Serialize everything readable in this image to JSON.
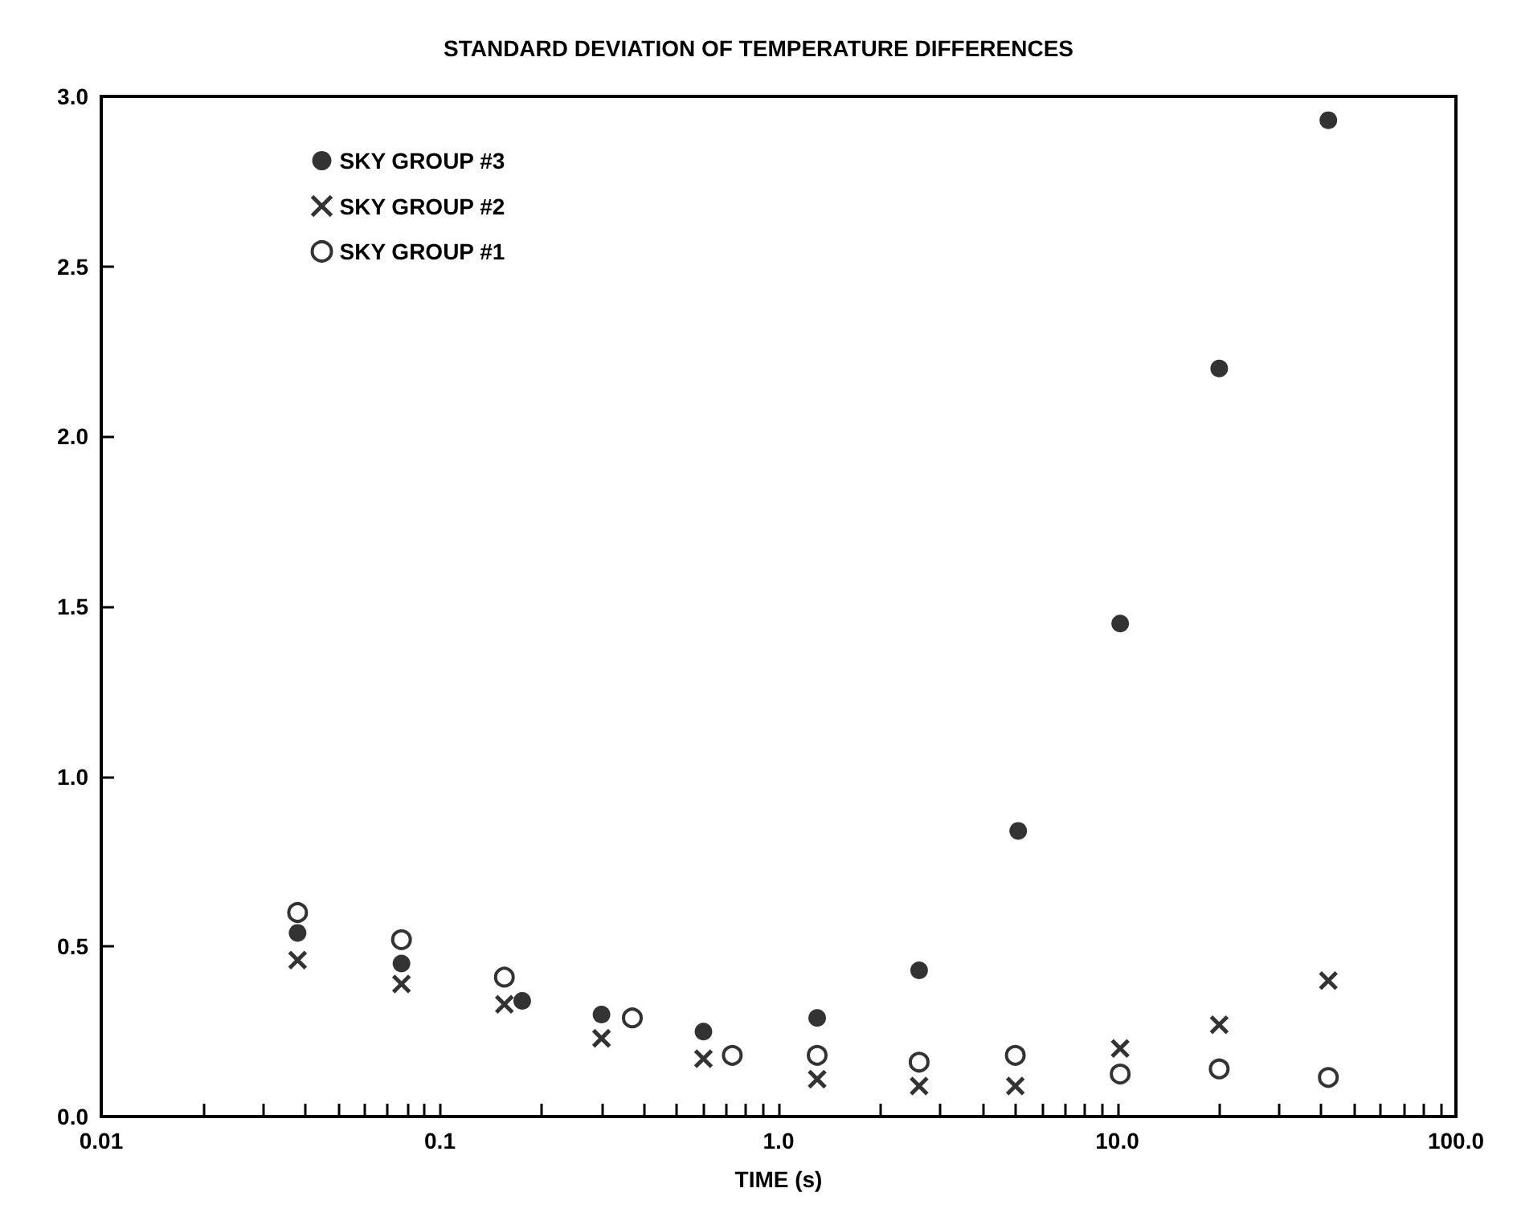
{
  "chart_data": {
    "type": "scatter",
    "title": "STANDARD DEVIATION OF TEMPERATURE DIFFERENCES",
    "xlabel": "TIME (s)",
    "log": "x",
    "grid": false,
    "legend": "top left",
    "xlim": [
      0.01,
      100
    ],
    "ylim": [
      0,
      3
    ],
    "xticks": [
      {
        "value": 0.01,
        "label": "0.01"
      },
      {
        "value": 0.02,
        "label": null
      },
      {
        "value": 0.03,
        "label": null
      },
      {
        "value": 0.04,
        "label": null
      },
      {
        "value": 0.05,
        "label": null
      },
      {
        "value": 0.06,
        "label": null
      },
      {
        "value": 0.07,
        "label": null
      },
      {
        "value": 0.08,
        "label": null
      },
      {
        "value": 0.09,
        "label": null
      },
      {
        "value": 0.1,
        "label": "0.1"
      },
      {
        "value": 0.2,
        "label": null
      },
      {
        "value": 0.3,
        "label": null
      },
      {
        "value": 0.4,
        "label": null
      },
      {
        "value": 0.5,
        "label": null
      },
      {
        "value": 0.6,
        "label": null
      },
      {
        "value": 0.7,
        "label": null
      },
      {
        "value": 0.8,
        "label": null
      },
      {
        "value": 0.9,
        "label": null
      },
      {
        "value": 1,
        "label": "1.0"
      },
      {
        "value": 2,
        "label": null
      },
      {
        "value": 3,
        "label": null
      },
      {
        "value": 4,
        "label": null
      },
      {
        "value": 5,
        "label": null
      },
      {
        "value": 6,
        "label": null
      },
      {
        "value": 7,
        "label": null
      },
      {
        "value": 8,
        "label": null
      },
      {
        "value": 9,
        "label": null
      },
      {
        "value": 10,
        "label": "10.0"
      },
      {
        "value": 20,
        "label": null
      },
      {
        "value": 30,
        "label": null
      },
      {
        "value": 40,
        "label": null
      },
      {
        "value": 50,
        "label": null
      },
      {
        "value": 60,
        "label": null
      },
      {
        "value": 70,
        "label": null
      },
      {
        "value": 80,
        "label": null
      },
      {
        "value": 90,
        "label": null
      },
      {
        "value": 100,
        "label": "100.0"
      }
    ],
    "yticks": [
      {
        "value": 0,
        "label": "0.0"
      },
      {
        "value": 0.5,
        "label": "0.5"
      },
      {
        "value": 1,
        "label": "1.0"
      },
      {
        "value": 1.5,
        "label": "1.5"
      },
      {
        "value": 2,
        "label": "2.0"
      },
      {
        "value": 2.5,
        "label": "2.5"
      },
      {
        "value": 3,
        "label": "3.0"
      }
    ],
    "series": [
      {
        "name": "SKY GROUP #3",
        "color": "#000000",
        "marker": "circle",
        "x": [
          0.038,
          0.077,
          0.175,
          0.3,
          0.6,
          1.3,
          2.6,
          5.1,
          10.2,
          20,
          42
        ],
        "values": [
          0.54,
          0.45,
          0.34,
          0.3,
          0.25,
          0.29,
          0.43,
          0.84,
          1.45,
          2.2,
          2.93
        ]
      },
      {
        "name": "SKY GROUP #2",
        "color": "#000000",
        "marker": "cross",
        "x": [
          0.038,
          0.077,
          0.155,
          0.3,
          0.6,
          1.3,
          2.6,
          5.0,
          10.2,
          20,
          42
        ],
        "values": [
          0.46,
          0.39,
          0.33,
          0.23,
          0.17,
          0.11,
          0.09,
          0.09,
          0.2,
          0.27,
          0.4
        ]
      },
      {
        "name": "SKY GROUP #1",
        "color": "#000000",
        "marker": "circle",
        "x": [
          0.038,
          0.077,
          0.155,
          0.37,
          0.73,
          1.3,
          2.6,
          5.0,
          10.2,
          20,
          42
        ],
        "values": [
          0.6,
          0.52,
          0.41,
          0.29,
          0.18,
          0.18,
          0.16,
          0.18,
          0.125,
          0.14,
          0.115
        ]
      }
    ]
  }
}
